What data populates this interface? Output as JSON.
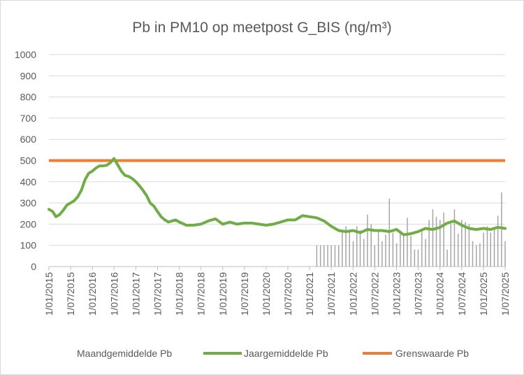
{
  "chart_data": {
    "type": "line",
    "title": "Pb in PM10 op meetpost G_BIS (ng/m³)",
    "xlabel": "",
    "ylabel": "",
    "ylim": [
      0,
      1000
    ],
    "yticks": [
      "0",
      "100",
      "200",
      "300",
      "400",
      "500",
      "600",
      "700",
      "800",
      "900",
      "1000"
    ],
    "xlim": [
      "2015-01-01",
      "2025-07-01"
    ],
    "xtick_labels": [
      "1/01/2015",
      "1/07/2015",
      "1/01/2016",
      "1/07/2016",
      "1/01/2017",
      "1/07/2017",
      "1/01/2018",
      "1/07/2018",
      "1/01/2019",
      "1/07/2019",
      "1/01/2020",
      "1/07/2020",
      "1/01/2021",
      "1/07/2021",
      "1/01/2022",
      "1/07/2022",
      "1/01/2023",
      "1/07/2023",
      "1/01/2024",
      "1/07/2024",
      "1/01/2025",
      "1/07/2025"
    ],
    "grid": "horizontal",
    "legend_position": "bottom",
    "series": [
      {
        "name": "Maandgemiddelde Pb",
        "type": "bar",
        "color": "#a5a5a5",
        "x": [
          "2021-03-01",
          "2021-04-01",
          "2021-05-01",
          "2021-06-01",
          "2021-07-01",
          "2021-08-01",
          "2021-09-01",
          "2021-10-01",
          "2021-11-01",
          "2021-12-01",
          "2022-01-01",
          "2022-02-01",
          "2022-03-01",
          "2022-04-01",
          "2022-05-01",
          "2022-06-01",
          "2022-07-01",
          "2022-08-01",
          "2022-09-01",
          "2022-10-01",
          "2022-11-01",
          "2022-12-01",
          "2023-01-01",
          "2023-02-01",
          "2023-03-01",
          "2023-04-01",
          "2023-05-01",
          "2023-06-01",
          "2023-07-01",
          "2023-08-01",
          "2023-09-01",
          "2023-10-01",
          "2023-11-01",
          "2023-12-01",
          "2024-01-01",
          "2024-02-01",
          "2024-03-01",
          "2024-04-01",
          "2024-05-01",
          "2024-06-01",
          "2024-07-01",
          "2024-08-01",
          "2024-09-01",
          "2024-10-01",
          "2024-11-01",
          "2024-12-01",
          "2025-01-01",
          "2025-02-01",
          "2025-03-01",
          "2025-04-01",
          "2025-05-01",
          "2025-06-01",
          "2025-07-01"
        ],
        "values": [
          100,
          100,
          100,
          100,
          100,
          100,
          100,
          170,
          190,
          170,
          120,
          190,
          170,
          130,
          245,
          200,
          100,
          170,
          120,
          150,
          320,
          160,
          110,
          170,
          145,
          230,
          145,
          80,
          80,
          170,
          130,
          220,
          270,
          235,
          220,
          255,
          80,
          200,
          270,
          155,
          220,
          210,
          200,
          120,
          100,
          110,
          160,
          190,
          160,
          180,
          240,
          350,
          120
        ]
      },
      {
        "name": "Jaargemiddelde Pb",
        "type": "line",
        "color": "#70ad47",
        "x": [
          "2015-01-01",
          "2015-02-01",
          "2015-03-01",
          "2015-04-01",
          "2015-05-01",
          "2015-06-01",
          "2015-07-01",
          "2015-08-01",
          "2015-09-01",
          "2015-10-01",
          "2015-11-01",
          "2015-12-01",
          "2016-01-01",
          "2016-02-01",
          "2016-03-01",
          "2016-04-01",
          "2016-05-01",
          "2016-06-01",
          "2016-07-01",
          "2016-08-01",
          "2016-09-01",
          "2016-10-01",
          "2016-11-01",
          "2016-12-01",
          "2017-01-01",
          "2017-02-01",
          "2017-03-01",
          "2017-04-01",
          "2017-05-01",
          "2017-06-01",
          "2017-07-01",
          "2017-08-01",
          "2017-09-01",
          "2017-10-01",
          "2017-11-01",
          "2017-12-01",
          "2018-01-01",
          "2018-03-01",
          "2018-05-01",
          "2018-07-01",
          "2018-09-01",
          "2018-11-01",
          "2019-01-01",
          "2019-03-01",
          "2019-05-01",
          "2019-07-01",
          "2019-09-01",
          "2019-11-01",
          "2020-01-01",
          "2020-03-01",
          "2020-05-01",
          "2020-07-01",
          "2020-09-01",
          "2020-11-01",
          "2021-01-01",
          "2021-03-01",
          "2021-05-01",
          "2021-07-01",
          "2021-09-01",
          "2021-11-01",
          "2022-01-01",
          "2022-03-01",
          "2022-05-01",
          "2022-07-01",
          "2022-09-01",
          "2022-11-01",
          "2023-01-01",
          "2023-03-01",
          "2023-05-01",
          "2023-07-01",
          "2023-09-01",
          "2023-11-01",
          "2024-01-01",
          "2024-03-01",
          "2024-05-01",
          "2024-07-01",
          "2024-09-01",
          "2024-11-01",
          "2025-01-01",
          "2025-03-01",
          "2025-05-01",
          "2025-07-01"
        ],
        "values": [
          270,
          260,
          235,
          245,
          265,
          290,
          300,
          310,
          330,
          360,
          410,
          440,
          450,
          465,
          475,
          475,
          478,
          490,
          510,
          480,
          450,
          430,
          425,
          415,
          400,
          380,
          360,
          335,
          300,
          285,
          260,
          235,
          220,
          210,
          215,
          220,
          210,
          195,
          195,
          200,
          215,
          225,
          200,
          210,
          200,
          205,
          205,
          200,
          195,
          200,
          210,
          220,
          220,
          240,
          235,
          230,
          215,
          190,
          170,
          165,
          170,
          160,
          175,
          170,
          170,
          165,
          175,
          150,
          155,
          165,
          180,
          175,
          185,
          205,
          215,
          195,
          180,
          175,
          180,
          175,
          185,
          180
        ]
      },
      {
        "name": "Grenswaarde Pb",
        "type": "line",
        "color": "#ed7d31",
        "x": [
          "2015-01-01",
          "2025-07-01"
        ],
        "values": [
          500,
          500
        ]
      }
    ]
  }
}
